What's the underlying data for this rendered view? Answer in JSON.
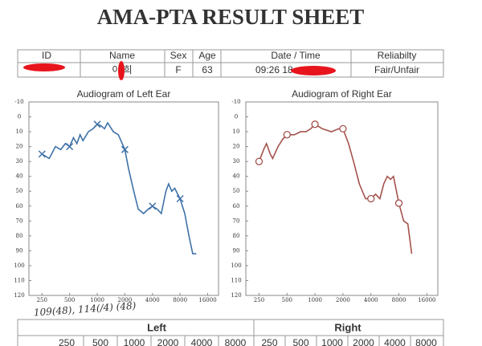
{
  "header": {
    "title": "AMA-PTA RESULT SHEET"
  },
  "info": {
    "headers": [
      "ID",
      "Name",
      "Sex",
      "Age",
      "Date / Time",
      "Reliabilty"
    ],
    "name": "이 희",
    "sex": "F",
    "age": 63,
    "date_time": "09:26 18",
    "reliability": "Fair/Unfair"
  },
  "chart_data": [
    {
      "type": "line",
      "title": "Audiogram of Left Ear",
      "color": "#3f72a8",
      "marker": "x",
      "xscale": "log",
      "y_reversed": true,
      "x": [
        250,
        300,
        350,
        400,
        450,
        500,
        550,
        600,
        650,
        700,
        800,
        900,
        1000,
        1100,
        1200,
        1300,
        1500,
        1700,
        2000,
        2200,
        2500,
        2800,
        3200,
        3600,
        4000,
        4500,
        5000,
        5600,
        6000,
        6500,
        7000,
        8000,
        9000,
        10000,
        11000,
        12000
      ],
      "values": [
        25,
        28,
        20,
        22,
        18,
        20,
        14,
        18,
        12,
        16,
        10,
        8,
        5,
        6,
        8,
        4,
        10,
        12,
        22,
        35,
        50,
        62,
        65,
        62,
        60,
        62,
        65,
        50,
        45,
        50,
        48,
        55,
        65,
        80,
        92,
        92
      ],
      "marker_x": [
        250,
        500,
        1000,
        2000,
        4000,
        8000
      ],
      "marker_values": [
        25,
        20,
        5,
        22,
        60,
        55
      ],
      "xlim": [
        180,
        21000
      ],
      "xticks": [
        250,
        500,
        1000,
        2000,
        4000,
        8000,
        16000
      ],
      "ylim": [
        -10,
        120
      ],
      "yticks": [
        -10,
        0,
        10,
        20,
        30,
        40,
        50,
        60,
        70,
        80,
        90,
        100,
        110,
        120
      ]
    },
    {
      "type": "line",
      "title": "Audiogram of Right Ear",
      "color": "#a4524c",
      "marker": "o",
      "xscale": "log",
      "y_reversed": true,
      "x": [
        250,
        280,
        300,
        330,
        350,
        400,
        450,
        500,
        600,
        700,
        800,
        900,
        1000,
        1200,
        1500,
        1800,
        2000,
        2300,
        2600,
        3000,
        3500,
        4000,
        4500,
        5000,
        5500,
        6000,
        6500,
        7000,
        8000,
        9000,
        10000,
        11000
      ],
      "values": [
        30,
        22,
        18,
        25,
        28,
        20,
        15,
        12,
        12,
        10,
        10,
        8,
        5,
        8,
        10,
        8,
        8,
        18,
        30,
        45,
        55,
        55,
        52,
        55,
        45,
        40,
        42,
        40,
        58,
        70,
        72,
        92
      ],
      "marker_x": [
        250,
        500,
        1000,
        2000,
        4000,
        8000
      ],
      "marker_values": [
        30,
        12,
        5,
        8,
        55,
        58
      ],
      "xlim": [
        180,
        21000
      ],
      "xticks": [
        250,
        500,
        1000,
        2000,
        4000,
        8000,
        16000
      ],
      "ylim": [
        -10,
        120
      ],
      "yticks": [
        -10,
        0,
        10,
        20,
        30,
        40,
        50,
        60,
        70,
        80,
        90,
        100,
        110,
        120
      ]
    }
  ],
  "note": "109(48),  114(/4) (48)",
  "bottom_table": {
    "left": "Left",
    "right": "Right",
    "left_freqs": [
      250,
      500,
      1000,
      2000,
      4000,
      8000
    ],
    "right_freqs": [
      250,
      500,
      1000,
      2000,
      4000,
      8000
    ]
  }
}
